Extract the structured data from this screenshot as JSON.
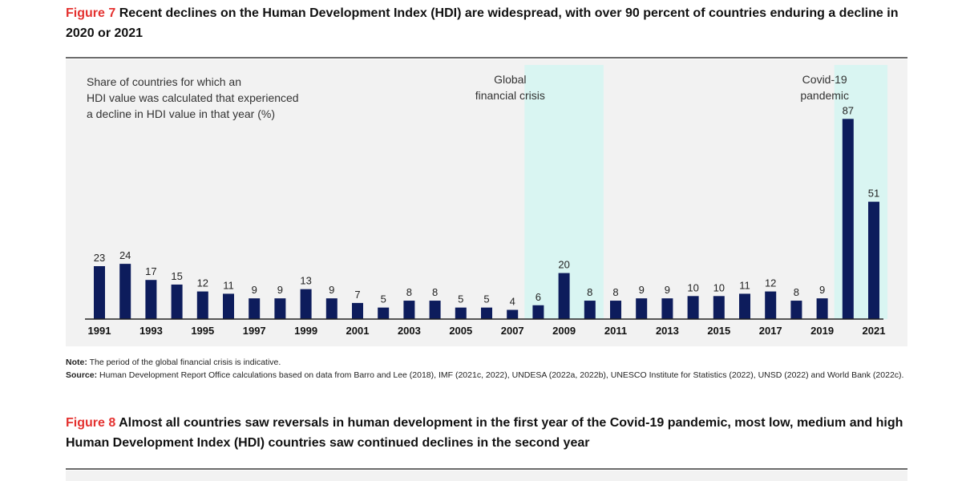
{
  "figure7": {
    "label": "Figure 7",
    "title": "Recent declines on the Human Development Index (HDI) are widespread, with over 90 percent of countries enduring a decline in 2020 or 2021"
  },
  "chart_data": {
    "type": "bar",
    "title": "",
    "ylabel": "Share of countries for which an HDI value was calculated that experienced a decline in HDI value in that year (%)",
    "ylabel_lines": [
      "Share of countries for which an",
      "HDI value was calculated that experienced",
      "a decline in HDI value in that year (%)"
    ],
    "ylim": [
      0,
      100
    ],
    "grid": false,
    "legend": "none",
    "bar_color": "#0d1c5c",
    "highlight_color": "#d9f5f2",
    "categories": [
      "1991",
      "1992",
      "1993",
      "1994",
      "1995",
      "1996",
      "1997",
      "1998",
      "1999",
      "2000",
      "2001",
      "2002",
      "2003",
      "2004",
      "2005",
      "2006",
      "2007",
      "2008",
      "2009",
      "2010",
      "2011",
      "2012",
      "2013",
      "2014",
      "2015",
      "2016",
      "2017",
      "2018",
      "2019",
      "2020",
      "2021"
    ],
    "x_tick_labels": [
      "1991",
      "1993",
      "1995",
      "1997",
      "1999",
      "2001",
      "2003",
      "2005",
      "2007",
      "2009",
      "2011",
      "2013",
      "2015",
      "2017",
      "2019",
      "2021"
    ],
    "values": [
      23,
      24,
      17,
      15,
      12,
      11,
      9,
      9,
      13,
      9,
      7,
      5,
      8,
      8,
      5,
      5,
      4,
      6,
      20,
      8,
      8,
      9,
      9,
      10,
      10,
      11,
      12,
      8,
      9,
      87,
      51
    ],
    "annotations": [
      {
        "lines": [
          "Global",
          "financial crisis"
        ],
        "from": "2008",
        "to": "2010"
      },
      {
        "lines": [
          "Covid-19",
          "pandemic"
        ],
        "from": "2020",
        "to": "2021"
      }
    ]
  },
  "notes": {
    "note_label": "Note:",
    "note_text": "The period of the global financial crisis is indicative.",
    "source_label": "Source:",
    "source_text": "Human Development Report Office calculations based on data from Barro and Lee (2018), IMF (2021c, 2022), UNDESA (2022a, 2022b), UNESCO Institute for Statistics (2022), UNSD (2022) and World Bank (2022c)."
  },
  "figure8": {
    "label": "Figure 8",
    "title": "Almost all countries saw reversals in human development in the first year of the Covid-19 pandemic, most low, medium and high Human Development Index (HDI) countries saw continued declines in the second year"
  }
}
